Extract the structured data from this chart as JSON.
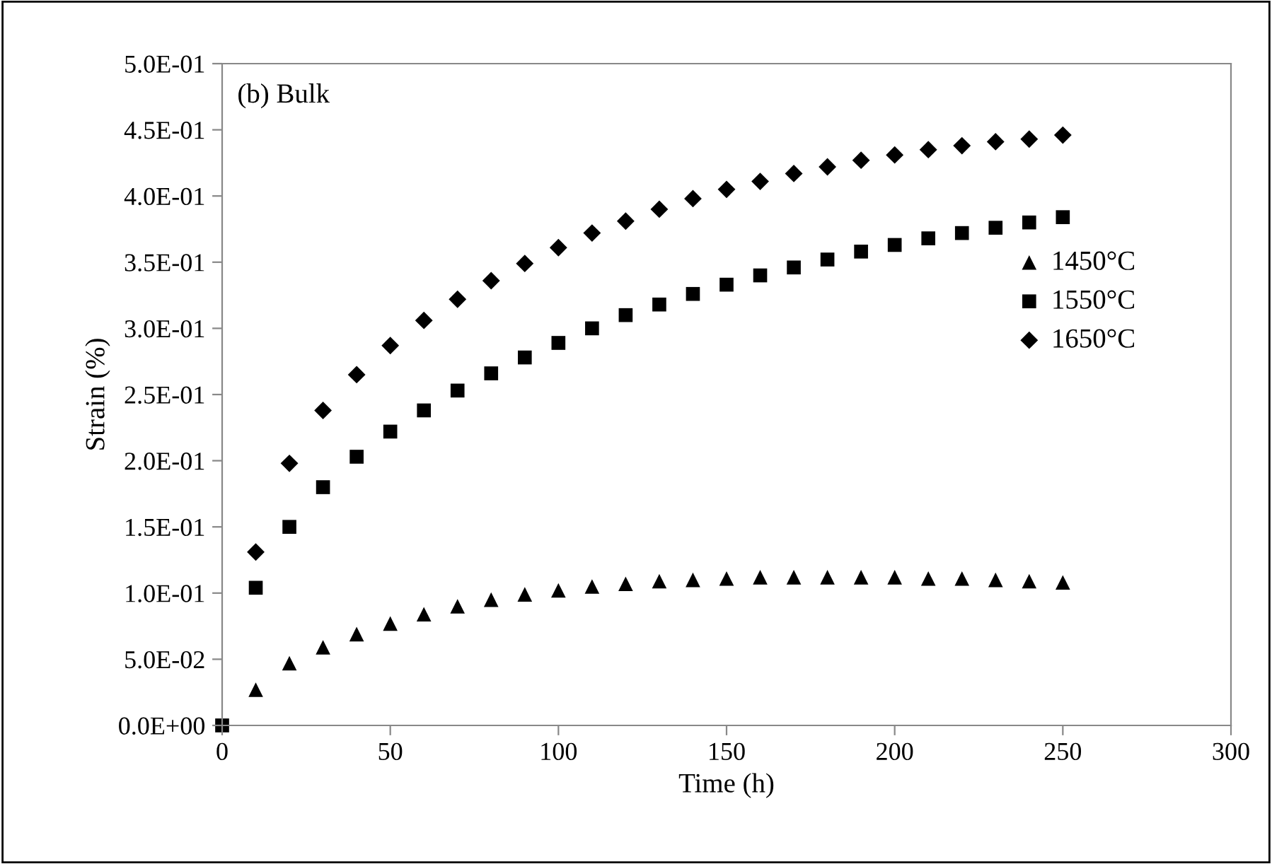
{
  "chart_data": {
    "type": "scatter",
    "xlabel": "Time (h)",
    "ylabel": "Strain (%)",
    "annotations": [
      "(b) Bulk"
    ],
    "x": [
      0,
      10,
      20,
      30,
      40,
      50,
      60,
      70,
      80,
      90,
      100,
      110,
      120,
      130,
      140,
      150,
      160,
      170,
      180,
      190,
      200,
      210,
      220,
      230,
      240,
      250
    ],
    "series": [
      {
        "name": "1450°C",
        "color": "#000000",
        "marker": "triangle",
        "values": [
          null,
          0.027,
          0.047,
          0.059,
          0.069,
          0.077,
          0.084,
          0.09,
          0.095,
          0.099,
          0.102,
          0.105,
          0.107,
          0.109,
          0.11,
          0.111,
          0.112,
          0.112,
          0.112,
          0.112,
          0.112,
          0.111,
          0.111,
          0.11,
          0.109,
          0.108
        ]
      },
      {
        "name": "1550°C",
        "color": "#000000",
        "marker": "square",
        "values": [
          0,
          0.104,
          0.15,
          0.18,
          0.203,
          0.222,
          0.238,
          0.253,
          0.266,
          0.278,
          0.289,
          0.3,
          0.31,
          0.318,
          0.326,
          0.333,
          0.34,
          0.346,
          0.352,
          0.358,
          0.363,
          0.368,
          0.372,
          0.376,
          0.38,
          0.384
        ]
      },
      {
        "name": "1650°C",
        "color": "#000000",
        "marker": "diamond",
        "values": [
          null,
          0.131,
          0.198,
          0.238,
          0.265,
          0.287,
          0.306,
          0.322,
          0.336,
          0.349,
          0.361,
          0.372,
          0.381,
          0.39,
          0.398,
          0.405,
          0.411,
          0.417,
          0.422,
          0.427,
          0.431,
          0.435,
          0.438,
          0.441,
          0.443,
          0.446
        ]
      }
    ],
    "xlim": [
      0,
      300
    ],
    "xticks": [
      0,
      50,
      100,
      150,
      200,
      250,
      300
    ],
    "ylim": [
      0,
      0.5
    ],
    "yticks": [
      {
        "value": 0,
        "label": "0.0E+00"
      },
      {
        "value": 0.05,
        "label": "5.0E-02"
      },
      {
        "value": 0.1,
        "label": "1.0E-01"
      },
      {
        "value": 0.15,
        "label": "1.5E-01"
      },
      {
        "value": 0.2,
        "label": "2.0E-01"
      },
      {
        "value": 0.25,
        "label": "2.5E-01"
      },
      {
        "value": 0.3,
        "label": "3.0E-01"
      },
      {
        "value": 0.35,
        "label": "3.5E-01"
      },
      {
        "value": 0.4,
        "label": "4.0E-01"
      },
      {
        "value": 0.45,
        "label": "4.5E-01"
      },
      {
        "value": 0.5,
        "label": "5.0E-01"
      }
    ],
    "grid": false,
    "legend": "right"
  }
}
